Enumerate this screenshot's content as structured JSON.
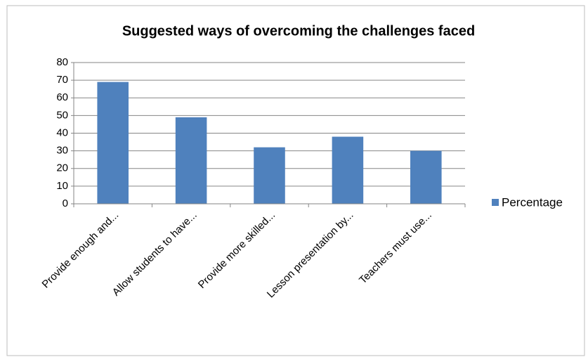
{
  "chart_data": {
    "type": "bar",
    "title": "Suggested ways of overcoming the challenges faced",
    "categories": [
      "Provide enough and...",
      "Allow students to have...",
      "Provide more skilled...",
      "Lesson presentation by...",
      "Teachers must use..."
    ],
    "series": [
      {
        "name": "Percentage",
        "color": "#4f81bd",
        "values": [
          69,
          49,
          32,
          38,
          30
        ]
      }
    ],
    "ylim": [
      0,
      80
    ],
    "yticks": [
      0,
      10,
      20,
      30,
      40,
      50,
      60,
      70,
      80
    ],
    "grid": true,
    "legend": "right"
  }
}
